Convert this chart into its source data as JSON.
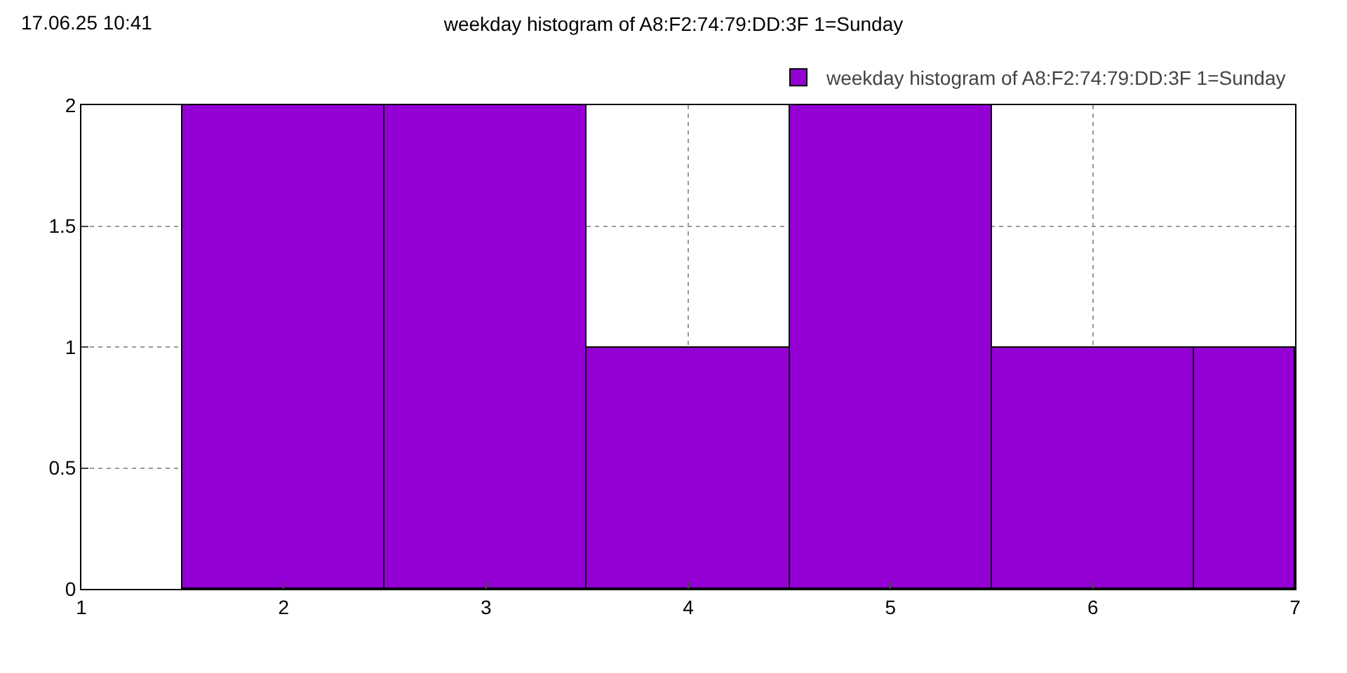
{
  "chart_data": {
    "type": "histogram",
    "title": "weekday histogram of A8:F2:74:79:DD:3F 1=Sunday",
    "annotations": [
      "17.06.25 10:41"
    ],
    "bins": [
      1.5,
      2.5,
      3.5,
      4.5,
      5.5,
      6.5,
      7
    ],
    "series": [
      {
        "name": "weekday histogram of A8:F2:74:79:DD:3F 1=Sunday",
        "color": "#9400d3",
        "values": [
          2,
          2,
          1,
          2,
          1,
          1
        ]
      }
    ],
    "xlim": [
      1,
      7
    ],
    "xticks": [
      1,
      2,
      3,
      4,
      5,
      6,
      7
    ],
    "ylim": [
      0,
      2
    ],
    "yticks": [
      0,
      0.5,
      1,
      1.5,
      2
    ],
    "grid": true,
    "legend": "top right"
  }
}
